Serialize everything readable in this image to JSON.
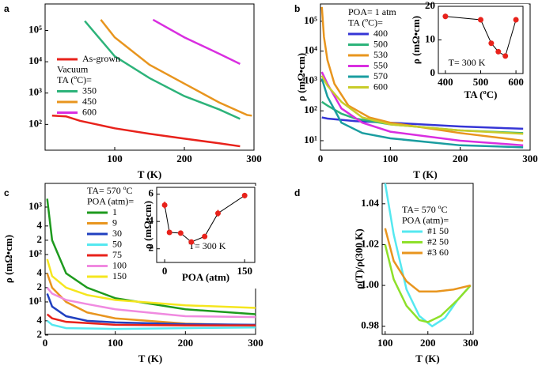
{
  "chart_data": [
    {
      "type": "line",
      "panel_label": "a",
      "xlabel": "T (K)",
      "log_y": true,
      "xlim": [
        0,
        300
      ],
      "ylim": [
        15,
        700000
      ],
      "xticks": [
        100,
        200,
        300
      ],
      "yticks": [
        {
          "value": 100,
          "label": "10²"
        },
        {
          "value": 1000,
          "label": "10³"
        },
        {
          "value": 10000,
          "label": "10⁴"
        },
        {
          "value": 100000,
          "label": "10⁵"
        }
      ],
      "legend_title": [
        "Vacuum",
        "TA (ºC)="
      ],
      "series": [
        {
          "name": "As-grown",
          "color": "#e8221b",
          "x": [
            10,
            30,
            50,
            100,
            150,
            200,
            250,
            280
          ],
          "values": [
            190,
            180,
            130,
            75,
            50,
            35,
            25,
            20
          ]
        },
        {
          "name": "350",
          "color": "#2db37a",
          "x": [
            57,
            80,
            100,
            150,
            200,
            250,
            280
          ],
          "values": [
            200000,
            50000,
            15000,
            3000,
            800,
            300,
            150
          ]
        },
        {
          "name": "450",
          "color": "#e8951e",
          "x": [
            80,
            100,
            150,
            200,
            250,
            290,
            297
          ],
          "values": [
            220000,
            60000,
            8000,
            2000,
            500,
            200,
            190
          ]
        },
        {
          "name": "600",
          "color": "#d92ee0",
          "x": [
            155,
            200,
            250,
            280
          ],
          "values": [
            220000,
            60000,
            18000,
            8500
          ]
        }
      ]
    },
    {
      "type": "line",
      "panel_label": "b",
      "xlabel": "T (K)",
      "ylabel": "ρ (mΩ•cm)",
      "log_y": true,
      "xlim": [
        0,
        300
      ],
      "ylim": [
        4.8,
        380000
      ],
      "xticks": [
        0,
        100,
        200,
        300
      ],
      "yticks": [
        {
          "value": 10,
          "label": "10¹"
        },
        {
          "value": 100,
          "label": "10²"
        },
        {
          "value": 1000,
          "label": "10³"
        },
        {
          "value": 10000,
          "label": "10⁴"
        },
        {
          "value": 100000,
          "label": "10⁵"
        }
      ],
      "legend_title": [
        "POA= 1 atm",
        "TA (ºC)="
      ],
      "series": [
        {
          "name": "400",
          "color": "#3535d6",
          "x": [
            2,
            10,
            50,
            100,
            200,
            290
          ],
          "values": [
            60,
            55,
            45,
            40,
            30,
            25
          ]
        },
        {
          "name": "500",
          "color": "#2db37a",
          "x": [
            2,
            10,
            30,
            50,
            100,
            200,
            290
          ],
          "values": [
            200,
            150,
            80,
            55,
            35,
            22,
            18
          ]
        },
        {
          "name": "530",
          "color": "#e8951e",
          "x": [
            2,
            5,
            10,
            20,
            40,
            70,
            100,
            200,
            290
          ],
          "values": [
            300000,
            30000,
            5000,
            800,
            150,
            60,
            40,
            18,
            10
          ]
        },
        {
          "name": "550",
          "color": "#d92ee0",
          "x": [
            2,
            10,
            30,
            60,
            100,
            200,
            290
          ],
          "values": [
            2000,
            800,
            120,
            40,
            20,
            10,
            7
          ]
        },
        {
          "name": "570",
          "color": "#1a9da0",
          "x": [
            2,
            10,
            30,
            60,
            100,
            200,
            290
          ],
          "values": [
            1200,
            300,
            40,
            18,
            12,
            7,
            6
          ]
        },
        {
          "name": "600",
          "color": "#c8cc2a",
          "x": [
            2,
            10,
            30,
            60,
            100,
            200,
            290
          ],
          "values": [
            1500,
            700,
            200,
            60,
            35,
            22,
            17
          ]
        }
      ]
    },
    {
      "type": "errorbar",
      "xlabel": "TA (ºC)",
      "ylabel": "ρ (mΩ•cm)",
      "annotation": "T= 300 K",
      "xlim": [
        380,
        620
      ],
      "ylim": [
        0,
        20
      ],
      "xticks": [
        400,
        500,
        600
      ],
      "yticks": [
        0,
        10,
        20
      ],
      "series": [
        {
          "color": "#e8221b",
          "x": [
            400,
            500,
            530,
            550,
            570,
            600
          ],
          "values": [
            17,
            16,
            9,
            6.5,
            5.2,
            16
          ],
          "errors": [
            0.8,
            0.8,
            0.6,
            0.5,
            0.5,
            0.8
          ]
        }
      ]
    },
    {
      "type": "line",
      "panel_label": "c",
      "xlabel": "T (K)",
      "ylabel": "ρ (mΩ•cm)",
      "log_y": true,
      "xlim": [
        0,
        300
      ],
      "ylim": [
        2.07,
        3160
      ],
      "xticks": [
        0,
        100,
        200,
        300
      ],
      "yticks": [
        2,
        4,
        {
          "value": 10,
          "label": "10¹"
        },
        {
          "value": 20,
          "label": "2"
        },
        {
          "value": 40,
          "label": "4"
        },
        {
          "value": 100,
          "label": "10²"
        },
        {
          "value": 200,
          "label": "2"
        },
        {
          "value": 400,
          "label": "4"
        },
        {
          "value": 1000,
          "label": "10³"
        }
      ],
      "legend_title": [
        "TA= 570 ºC",
        "POA (atm)="
      ],
      "series": [
        {
          "name": "1",
          "color": "#1e9a1e",
          "x": [
            3,
            10,
            30,
            60,
            100,
            200,
            300
          ],
          "values": [
            1500,
            200,
            40,
            20,
            12,
            7,
            5.5
          ]
        },
        {
          "name": "9",
          "color": "#e8951e",
          "x": [
            3,
            10,
            30,
            60,
            100,
            200,
            300
          ],
          "values": [
            40,
            20,
            10,
            6,
            4.5,
            3.5,
            3.2
          ]
        },
        {
          "name": "30",
          "color": "#2040c0",
          "x": [
            3,
            10,
            30,
            60,
            100,
            200,
            300
          ],
          "values": [
            15,
            8,
            5,
            4,
            3.7,
            3.4,
            3.3
          ]
        },
        {
          "name": "50",
          "color": "#55e8f0",
          "x": [
            3,
            10,
            30,
            100,
            200,
            300
          ],
          "values": [
            4,
            3.3,
            2.8,
            2.7,
            2.8,
            2.9
          ]
        },
        {
          "name": "75",
          "color": "#e8221b",
          "x": [
            3,
            10,
            30,
            100,
            200,
            300
          ],
          "values": [
            5.5,
            4.5,
            3.8,
            3.3,
            3.2,
            3.2
          ]
        },
        {
          "name": "100",
          "color": "#f08ae0",
          "x": [
            3,
            10,
            30,
            60,
            100,
            200,
            300
          ],
          "values": [
            20,
            15,
            11,
            9,
            7,
            5,
            4.8
          ]
        },
        {
          "name": "150",
          "color": "#f5e61e",
          "x": [
            3,
            10,
            30,
            60,
            100,
            200,
            300
          ],
          "values": [
            80,
            35,
            20,
            14,
            11,
            8.5,
            7.5
          ]
        }
      ]
    },
    {
      "type": "errorbar",
      "xlabel": "POA (atm)",
      "ylabel": "ρ (mΩ•cm)",
      "annotation": "T= 300 K",
      "xlim": [
        -15,
        169
      ],
      "ylim": [
        1,
        6.5
      ],
      "xticks": [
        0,
        150
      ],
      "yticks": [
        2,
        4,
        6
      ],
      "series": [
        {
          "color": "#e8221b",
          "x": [
            0,
            9,
            30,
            50,
            75,
            100,
            150
          ],
          "values": [
            5.2,
            3.2,
            3.15,
            2.5,
            2.9,
            4.6,
            5.9
          ],
          "errors": [
            0.25,
            0.15,
            0.15,
            0.1,
            0.15,
            0.25,
            0.2
          ]
        }
      ]
    },
    {
      "type": "line",
      "panel_label": "d",
      "xlabel": "T (K)",
      "ylabel": "ρ(T)/ρ(300 K)",
      "xlim": [
        93,
        306
      ],
      "ylim": [
        0.976,
        1.05
      ],
      "xticks": [
        100,
        200,
        300
      ],
      "yticks": [
        0.98,
        {
          "value": 1,
          "label": "1.00"
        },
        1.02,
        1.04
      ],
      "legend_title": [
        "TA= 570 ºC",
        "POA (atm)="
      ],
      "series": [
        {
          "name": "#1 50",
          "color": "#55e8f0",
          "x": [
            100,
            120,
            150,
            180,
            210,
            240,
            270,
            300
          ],
          "values": [
            1.05,
            1.025,
            0.998,
            0.985,
            0.98,
            0.984,
            0.993,
            1.0
          ]
        },
        {
          "name": "#2 50",
          "color": "#8ee02a",
          "x": [
            100,
            120,
            150,
            180,
            200,
            230,
            270,
            300
          ],
          "values": [
            1.02,
            1.003,
            0.99,
            0.983,
            0.982,
            0.985,
            0.993,
            1.0
          ]
        },
        {
          "name": "#3 60",
          "color": "#e8951e",
          "x": [
            100,
            120,
            150,
            180,
            220,
            260,
            300
          ],
          "values": [
            1.028,
            1.012,
            1.002,
            0.997,
            0.997,
            0.998,
            1.0
          ]
        }
      ]
    }
  ]
}
